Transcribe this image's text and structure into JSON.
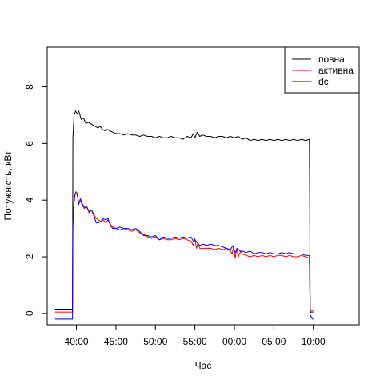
{
  "chart_data": {
    "type": "line",
    "title": "",
    "xlabel": "Час",
    "ylabel": "Потужність, кВт",
    "xlim": [
      -2.7,
      36.8
    ],
    "ylim": [
      -0.4,
      9.4
    ],
    "x_unit": "minutes from 39:00",
    "x_ticks": [
      {
        "x": 1,
        "label": "40:00"
      },
      {
        "x": 6,
        "label": "45:00"
      },
      {
        "x": 11,
        "label": "50:00"
      },
      {
        "x": 16,
        "label": "55:00"
      },
      {
        "x": 21,
        "label": "00:00"
      },
      {
        "x": 26,
        "label": "05:00"
      },
      {
        "x": 31,
        "label": "10:00"
      }
    ],
    "y_ticks": [
      {
        "y": 0,
        "label": "0"
      },
      {
        "y": 2,
        "label": "2"
      },
      {
        "y": 4,
        "label": "4"
      },
      {
        "y": 6,
        "label": "6"
      },
      {
        "y": 8,
        "label": "8"
      }
    ],
    "grid": false,
    "legend_position": "top-right",
    "series": [
      {
        "name": "повна",
        "color": "#000000",
        "points": [
          [
            -1.7,
            0.15
          ],
          [
            0.5,
            0.15
          ],
          [
            0.55,
            6.2
          ],
          [
            0.7,
            7.0
          ],
          [
            0.9,
            7.15
          ],
          [
            1.1,
            7.05
          ],
          [
            1.3,
            7.15
          ],
          [
            1.6,
            6.85
          ],
          [
            1.9,
            6.9
          ],
          [
            2.2,
            6.7
          ],
          [
            2.5,
            6.75
          ],
          [
            2.8,
            6.7
          ],
          [
            3.1,
            6.65
          ],
          [
            3.4,
            6.6
          ],
          [
            3.7,
            6.55
          ],
          [
            4.0,
            6.6
          ],
          [
            4.3,
            6.5
          ],
          [
            4.6,
            6.45
          ],
          [
            4.9,
            6.5
          ],
          [
            5.2,
            6.45
          ],
          [
            5.6,
            6.4
          ],
          [
            6.0,
            6.35
          ],
          [
            6.5,
            6.35
          ],
          [
            7.0,
            6.3
          ],
          [
            7.5,
            6.35
          ],
          [
            8.0,
            6.3
          ],
          [
            8.5,
            6.3
          ],
          [
            9.0,
            6.25
          ],
          [
            9.5,
            6.3
          ],
          [
            10.0,
            6.25
          ],
          [
            10.5,
            6.25
          ],
          [
            11.0,
            6.2
          ],
          [
            11.5,
            6.25
          ],
          [
            12.0,
            6.2
          ],
          [
            12.5,
            6.2
          ],
          [
            13.0,
            6.25
          ],
          [
            13.5,
            6.2
          ],
          [
            14.0,
            6.2
          ],
          [
            14.5,
            6.15
          ],
          [
            15.0,
            6.25
          ],
          [
            15.5,
            6.2
          ],
          [
            15.8,
            6.35
          ],
          [
            16.0,
            6.2
          ],
          [
            16.3,
            6.4
          ],
          [
            16.6,
            6.25
          ],
          [
            17.0,
            6.3
          ],
          [
            17.5,
            6.25
          ],
          [
            18.0,
            6.25
          ],
          [
            18.5,
            6.2
          ],
          [
            19.0,
            6.25
          ],
          [
            19.5,
            6.25
          ],
          [
            20.0,
            6.2
          ],
          [
            20.5,
            6.25
          ],
          [
            21.0,
            6.2
          ],
          [
            21.5,
            6.25
          ],
          [
            22.0,
            6.15
          ],
          [
            22.5,
            6.2
          ],
          [
            23.0,
            6.1
          ],
          [
            23.5,
            6.15
          ],
          [
            24.0,
            6.1
          ],
          [
            24.5,
            6.15
          ],
          [
            25.0,
            6.1
          ],
          [
            25.5,
            6.15
          ],
          [
            26.0,
            6.1
          ],
          [
            26.5,
            6.15
          ],
          [
            27.0,
            6.1
          ],
          [
            27.5,
            6.15
          ],
          [
            28.0,
            6.1
          ],
          [
            28.5,
            6.15
          ],
          [
            29.0,
            6.1
          ],
          [
            29.5,
            6.15
          ],
          [
            30.0,
            6.1
          ],
          [
            30.5,
            6.15
          ],
          [
            30.6,
            0.05
          ],
          [
            31.0,
            0.05
          ]
        ]
      },
      {
        "name": "активна",
        "color": "#ff0000",
        "points": [
          [
            -1.7,
            0.05
          ],
          [
            0.5,
            0.05
          ],
          [
            0.55,
            3.0
          ],
          [
            0.7,
            3.9
          ],
          [
            0.9,
            4.3
          ],
          [
            1.1,
            4.25
          ],
          [
            1.3,
            3.9
          ],
          [
            1.5,
            4.0
          ],
          [
            1.7,
            3.85
          ],
          [
            2.0,
            3.7
          ],
          [
            2.3,
            3.8
          ],
          [
            2.6,
            3.55
          ],
          [
            2.9,
            3.65
          ],
          [
            3.2,
            3.5
          ],
          [
            3.5,
            3.35
          ],
          [
            3.8,
            3.3
          ],
          [
            4.1,
            3.25
          ],
          [
            4.4,
            3.3
          ],
          [
            4.7,
            3.2
          ],
          [
            5.0,
            3.3
          ],
          [
            5.3,
            3.15
          ],
          [
            5.6,
            3.05
          ],
          [
            6.0,
            3.0
          ],
          [
            6.5,
            2.95
          ],
          [
            7.0,
            3.0
          ],
          [
            7.5,
            2.95
          ],
          [
            8.0,
            2.9
          ],
          [
            8.5,
            2.95
          ],
          [
            9.0,
            2.85
          ],
          [
            9.5,
            2.8
          ],
          [
            10.0,
            2.7
          ],
          [
            10.5,
            2.65
          ],
          [
            11.0,
            2.7
          ],
          [
            11.5,
            2.6
          ],
          [
            12.0,
            2.65
          ],
          [
            12.5,
            2.6
          ],
          [
            13.0,
            2.6
          ],
          [
            13.5,
            2.65
          ],
          [
            14.0,
            2.6
          ],
          [
            14.5,
            2.65
          ],
          [
            15.0,
            2.6
          ],
          [
            15.5,
            2.55
          ],
          [
            15.8,
            2.4
          ],
          [
            16.0,
            2.65
          ],
          [
            16.2,
            2.3
          ],
          [
            16.4,
            2.5
          ],
          [
            16.6,
            2.3
          ],
          [
            17.0,
            2.3
          ],
          [
            17.5,
            2.3
          ],
          [
            18.0,
            2.3
          ],
          [
            18.5,
            2.25
          ],
          [
            19.0,
            2.3
          ],
          [
            19.5,
            2.25
          ],
          [
            20.0,
            2.3
          ],
          [
            20.5,
            2.2
          ],
          [
            20.7,
            2.1
          ],
          [
            20.9,
            2.35
          ],
          [
            21.1,
            1.95
          ],
          [
            21.3,
            2.3
          ],
          [
            21.5,
            2.0
          ],
          [
            21.8,
            2.2
          ],
          [
            22.0,
            2.1
          ],
          [
            22.5,
            2.05
          ],
          [
            23.0,
            2.0
          ],
          [
            23.5,
            2.05
          ],
          [
            24.0,
            2.0
          ],
          [
            24.5,
            2.05
          ],
          [
            25.0,
            2.0
          ],
          [
            25.5,
            2.05
          ],
          [
            26.0,
            2.0
          ],
          [
            26.5,
            2.05
          ],
          [
            27.0,
            2.05
          ],
          [
            27.5,
            2.0
          ],
          [
            28.0,
            2.05
          ],
          [
            28.5,
            2.0
          ],
          [
            29.0,
            2.0
          ],
          [
            29.5,
            2.05
          ],
          [
            30.0,
            2.0
          ],
          [
            30.5,
            1.95
          ],
          [
            30.6,
            0.1
          ],
          [
            31.0,
            0.1
          ]
        ]
      },
      {
        "name": "dc",
        "color": "#0000ff",
        "points": [
          [
            -1.7,
            -0.2
          ],
          [
            0.5,
            -0.2
          ],
          [
            0.55,
            3.2
          ],
          [
            0.7,
            4.1
          ],
          [
            0.9,
            4.25
          ],
          [
            1.1,
            4.2
          ],
          [
            1.3,
            3.85
          ],
          [
            1.5,
            4.05
          ],
          [
            1.7,
            3.9
          ],
          [
            2.0,
            3.75
          ],
          [
            2.3,
            3.75
          ],
          [
            2.6,
            3.6
          ],
          [
            2.9,
            3.65
          ],
          [
            3.2,
            3.45
          ],
          [
            3.5,
            3.2
          ],
          [
            3.8,
            3.2
          ],
          [
            4.1,
            3.25
          ],
          [
            4.4,
            3.35
          ],
          [
            4.7,
            3.3
          ],
          [
            5.0,
            3.35
          ],
          [
            5.3,
            3.1
          ],
          [
            5.6,
            3.0
          ],
          [
            6.0,
            3.0
          ],
          [
            6.5,
            3.05
          ],
          [
            7.0,
            3.0
          ],
          [
            7.5,
            3.0
          ],
          [
            8.0,
            2.95
          ],
          [
            8.5,
            3.0
          ],
          [
            9.0,
            2.9
          ],
          [
            9.5,
            2.75
          ],
          [
            10.0,
            2.75
          ],
          [
            10.5,
            2.7
          ],
          [
            11.0,
            2.75
          ],
          [
            11.5,
            2.6
          ],
          [
            12.0,
            2.7
          ],
          [
            12.5,
            2.65
          ],
          [
            13.0,
            2.65
          ],
          [
            13.5,
            2.7
          ],
          [
            14.0,
            2.65
          ],
          [
            14.5,
            2.7
          ],
          [
            15.0,
            2.65
          ],
          [
            15.5,
            2.7
          ],
          [
            15.8,
            2.55
          ],
          [
            16.0,
            2.6
          ],
          [
            16.3,
            2.5
          ],
          [
            16.6,
            2.4
          ],
          [
            17.0,
            2.45
          ],
          [
            17.5,
            2.4
          ],
          [
            18.0,
            2.45
          ],
          [
            18.5,
            2.4
          ],
          [
            19.0,
            2.4
          ],
          [
            19.5,
            2.35
          ],
          [
            20.0,
            2.3
          ],
          [
            20.5,
            2.25
          ],
          [
            20.8,
            2.4
          ],
          [
            21.1,
            2.15
          ],
          [
            21.4,
            2.3
          ],
          [
            21.7,
            2.2
          ],
          [
            22.0,
            2.2
          ],
          [
            22.5,
            2.15
          ],
          [
            23.0,
            2.2
          ],
          [
            23.5,
            2.1
          ],
          [
            24.0,
            2.15
          ],
          [
            24.5,
            2.15
          ],
          [
            25.0,
            2.1
          ],
          [
            25.5,
            2.15
          ],
          [
            26.0,
            2.1
          ],
          [
            26.5,
            2.1
          ],
          [
            27.0,
            2.15
          ],
          [
            27.5,
            2.1
          ],
          [
            28.0,
            2.15
          ],
          [
            28.5,
            2.1
          ],
          [
            29.0,
            2.1
          ],
          [
            29.5,
            2.1
          ],
          [
            30.0,
            2.05
          ],
          [
            30.5,
            2.05
          ],
          [
            30.6,
            -0.05
          ],
          [
            30.9,
            -0.2
          ],
          [
            31.0,
            -0.2
          ]
        ]
      }
    ]
  }
}
